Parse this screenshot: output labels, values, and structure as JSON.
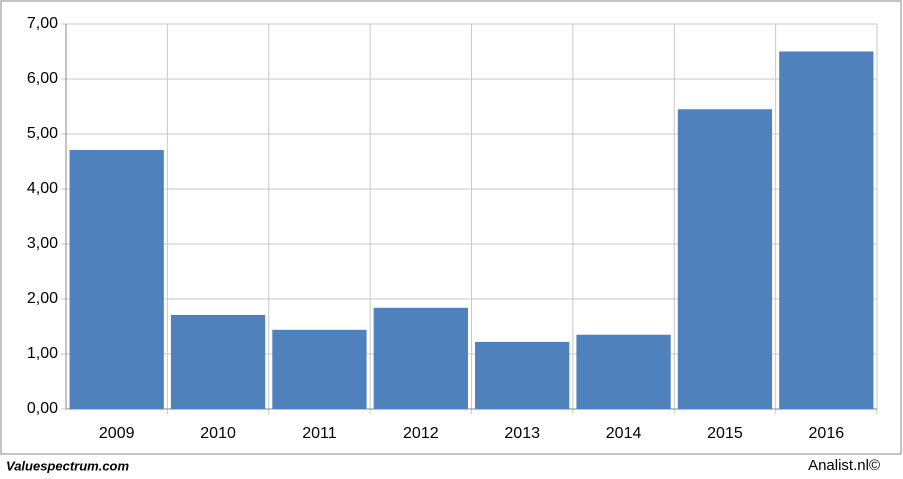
{
  "chart_data": {
    "type": "bar",
    "categories": [
      "2009",
      "2010",
      "2011",
      "2012",
      "2013",
      "2014",
      "2015",
      "2016"
    ],
    "values": [
      4.71,
      1.71,
      1.44,
      1.84,
      1.22,
      1.35,
      5.45,
      6.5
    ],
    "color": "#4f81bd",
    "ylim": [
      0,
      7
    ],
    "yticks": [
      {
        "value": 0,
        "label": "0,00"
      },
      {
        "value": 1,
        "label": "1,00"
      },
      {
        "value": 2,
        "label": "2,00"
      },
      {
        "value": 3,
        "label": "3,00"
      },
      {
        "value": 4,
        "label": "4,00"
      },
      {
        "value": 5,
        "label": "5,00"
      },
      {
        "value": 6,
        "label": "6,00"
      },
      {
        "value": 7,
        "label": "7,00"
      }
    ],
    "grid": true
  },
  "footer": {
    "left": "Valuespectrum.com",
    "right": "Analist.nl©"
  }
}
